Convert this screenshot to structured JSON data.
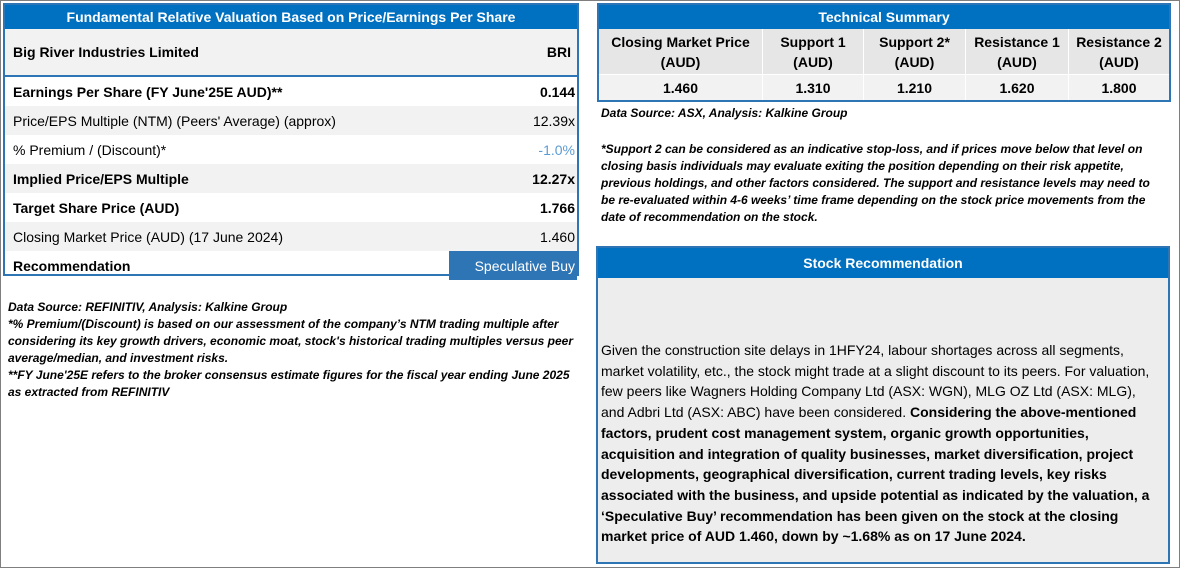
{
  "valuation": {
    "header": "Fundamental Relative Valuation Based on Price/Earnings Per Share",
    "company": "Big River Industries Limited",
    "ticker": "BRI",
    "rows": [
      {
        "label": "Earnings Per Share (FY June'25E AUD)**",
        "value": "0.144"
      },
      {
        "label": "Price/EPS Multiple (NTM) (Peers' Average) (approx)",
        "value": "12.39x"
      },
      {
        "label": "% Premium / (Discount)*",
        "value": "-1.0%"
      },
      {
        "label": "Implied Price/EPS Multiple",
        "value": "12.27x"
      },
      {
        "label": "Target Share Price (AUD)",
        "value": "1.766"
      },
      {
        "label": "Closing Market Price (AUD) (17 June 2024)",
        "value": "1.460"
      }
    ],
    "recommendation_label": "Recommendation",
    "recommendation_value": "Speculative Buy",
    "notes": {
      "source": "Data Source: REFINITIV, Analysis: Kalkine Group",
      "premium": "*% Premium/(Discount) is based on our assessment of the company’s NTM trading multiple after considering its key growth drivers, economic moat, stock's historical trading multiples versus peer average/median, and investment risks.",
      "fy": "**FY June'25E refers to the broker consensus estimate figures for the fiscal year ending June 2025 as extracted from REFINITIV"
    }
  },
  "technical": {
    "header": "Technical Summary",
    "columns": [
      {
        "head1": "Closing Market Price",
        "head2": "(AUD)",
        "value": "1.460"
      },
      {
        "head1": "Support 1",
        "head2": "(AUD)",
        "value": "1.310"
      },
      {
        "head1": "Support 2*",
        "head2": "(AUD)",
        "value": "1.210"
      },
      {
        "head1": "Resistance 1",
        "head2": "(AUD)",
        "value": "1.620"
      },
      {
        "head1": "Resistance 2",
        "head2": "(AUD)",
        "value": "1.800"
      }
    ],
    "source": "Data Source: ASX, Analysis: Kalkine Group",
    "note": "*Support 2 can be considered as an indicative stop-loss, and if prices move below that level on closing basis individuals may evaluate exiting the position depending on their risk appetite, previous holdings, and other factors considered. The support and resistance levels may need to be re-evaluated within 4-6 weeks’ time frame depending on the stock price movements from the date of recommendation on the stock."
  },
  "stock_recommendation": {
    "header": "Stock Recommendation",
    "body_plain": "Given the construction site delays in 1HFY24, labour shortages across all segments, market volatility, etc., the stock might trade at a slight discount to its peers. For valuation, few peers like Wagners Holding Company Ltd (ASX: WGN), MLG OZ Ltd (ASX: MLG), and Adbri Ltd (ASX: ABC) have been considered.",
    "body_bold": "Considering the above-mentioned factors, prudent cost management system, organic growth opportunities, acquisition and integration of quality businesses, market diversification, project developments, geographical diversification, current trading levels, key risks associated with the business, and upside potential as indicated by the valuation, a ‘Speculative Buy’ recommendation has been given on the stock at the closing market price of AUD 1.460, down by ~1.68% as on 17 June 2024."
  }
}
